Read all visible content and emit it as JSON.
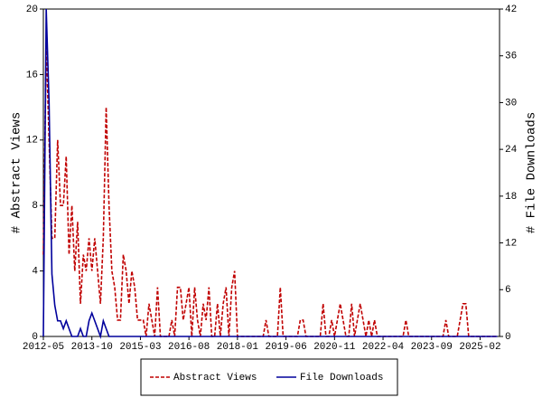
{
  "chart_data": {
    "type": "line",
    "y_label": "# Abstract Views",
    "y2_label": "# File Downloads",
    "x": [
      "2012-05",
      "2012-06",
      "2012-07",
      "2012-08",
      "2012-09",
      "2012-10",
      "2012-11",
      "2012-12",
      "2013-01",
      "2013-02",
      "2013-03",
      "2013-04",
      "2013-05",
      "2013-06",
      "2013-07",
      "2013-08",
      "2013-09",
      "2013-10",
      "2013-11",
      "2013-12",
      "2014-01",
      "2014-02",
      "2014-03",
      "2014-04",
      "2014-05",
      "2014-06",
      "2014-07",
      "2014-08",
      "2014-09",
      "2014-10",
      "2014-11",
      "2014-12",
      "2015-01",
      "2015-02",
      "2015-03",
      "2015-04",
      "2015-05",
      "2015-06",
      "2015-07",
      "2015-08",
      "2015-09",
      "2015-10",
      "2015-11",
      "2015-12",
      "2016-01",
      "2016-02",
      "2016-03",
      "2016-04",
      "2016-05",
      "2016-06",
      "2016-07",
      "2016-08",
      "2016-09",
      "2016-10",
      "2016-11",
      "2016-12",
      "2017-01",
      "2017-02",
      "2017-03",
      "2017-04",
      "2017-05",
      "2017-06",
      "2017-07",
      "2017-08",
      "2017-09",
      "2017-10",
      "2017-11",
      "2017-12",
      "2018-01",
      "2018-02",
      "2018-03",
      "2018-04",
      "2018-05",
      "2018-06",
      "2018-07",
      "2018-08",
      "2018-09",
      "2018-10",
      "2018-11",
      "2018-12",
      "2019-01",
      "2019-02",
      "2019-03",
      "2019-04",
      "2019-05",
      "2019-06",
      "2019-07",
      "2019-08",
      "2019-09",
      "2019-10",
      "2019-11",
      "2019-12",
      "2020-01",
      "2020-02",
      "2020-03",
      "2020-04",
      "2020-05",
      "2020-06",
      "2020-07",
      "2020-08",
      "2020-09",
      "2020-10",
      "2020-11",
      "2020-12",
      "2021-01",
      "2021-02",
      "2021-03",
      "2021-04",
      "2021-05",
      "2021-06",
      "2021-07",
      "2021-08",
      "2021-09",
      "2021-10",
      "2021-11",
      "2021-12",
      "2022-01",
      "2022-02",
      "2022-03",
      "2022-04",
      "2022-05",
      "2022-06",
      "2022-07",
      "2022-08",
      "2022-09",
      "2022-10",
      "2022-11",
      "2022-12",
      "2023-01",
      "2023-02",
      "2023-03",
      "2023-04",
      "2023-05",
      "2023-06",
      "2023-07",
      "2023-08",
      "2023-09",
      "2023-10",
      "2023-11",
      "2023-12",
      "2024-01",
      "2024-02",
      "2024-03",
      "2024-04",
      "2024-05",
      "2024-06",
      "2024-07",
      "2024-08",
      "2024-09",
      "2024-10",
      "2024-11",
      "2024-12",
      "2025-01",
      "2025-02",
      "2025-03",
      "2025-04",
      "2025-05",
      "2025-06",
      "2025-07",
      "2025-08"
    ],
    "xticks": [
      "2012-05",
      "2013-10",
      "2015-03",
      "2016-08",
      "2018-01",
      "2019-06",
      "2020-11",
      "2022-04",
      "2023-09",
      "2025-02"
    ],
    "ylim": [
      0,
      20
    ],
    "yticks": [
      0,
      4,
      8,
      12,
      16,
      20
    ],
    "y2lim": [
      0,
      42
    ],
    "y2ticks": [
      0,
      6,
      12,
      18,
      24,
      30,
      36,
      42
    ],
    "series": [
      {
        "name": "Abstract Views",
        "color": "#c00000",
        "dashed": true,
        "values": [
          5,
          18,
          12,
          6,
          6,
          12,
          8,
          8,
          11,
          5,
          8,
          4,
          7,
          2,
          5,
          4,
          6,
          4,
          6,
          4,
          2,
          6,
          14,
          8,
          4,
          3,
          1,
          1,
          5,
          4,
          2,
          4,
          3,
          1,
          1,
          1,
          0,
          2,
          1,
          0,
          3,
          0,
          0,
          0,
          0,
          1,
          0,
          3,
          3,
          1,
          2,
          3,
          0,
          3,
          1,
          0,
          2,
          1,
          3,
          0,
          0,
          2,
          0,
          2,
          3,
          0,
          3,
          4,
          0,
          0,
          0,
          0,
          0,
          0,
          0,
          0,
          0,
          0,
          1,
          0,
          0,
          0,
          0,
          3,
          0,
          0,
          0,
          0,
          0,
          0,
          1,
          1,
          0,
          0,
          0,
          0,
          0,
          0,
          2,
          0,
          0,
          1,
          0,
          1,
          2,
          1,
          0,
          0,
          2,
          0,
          1,
          2,
          1,
          0,
          1,
          0,
          1,
          0,
          0,
          0,
          0,
          0,
          0,
          0,
          0,
          0,
          0,
          1,
          0,
          0,
          0,
          0,
          0,
          0,
          0,
          0,
          0,
          0,
          0,
          0,
          0,
          1,
          0,
          0,
          0,
          0,
          1,
          2,
          2,
          0,
          0,
          0,
          0,
          0,
          0,
          0,
          0,
          0,
          0,
          0
        ]
      },
      {
        "name": "File Downloads",
        "color": "#00009c",
        "dashed": false,
        "axis": "y2",
        "values": [
          0,
          42,
          30,
          8,
          4,
          2,
          2,
          1,
          2,
          1,
          0,
          0,
          0,
          1,
          0,
          0,
          2,
          3,
          2,
          1,
          0,
          2,
          1,
          0,
          0,
          0,
          0,
          0,
          0,
          0,
          0,
          0,
          0,
          0,
          0,
          0,
          0,
          0,
          0,
          0,
          0,
          0,
          0,
          0,
          0,
          0,
          0,
          0,
          0,
          0,
          0,
          0,
          0,
          0,
          0,
          0,
          0,
          0,
          0,
          0,
          0,
          0,
          0,
          0,
          0,
          0,
          0,
          0,
          0,
          0,
          0,
          0,
          0,
          0,
          0,
          0,
          0,
          0,
          0,
          0,
          0,
          0,
          0,
          0,
          0,
          0,
          0,
          0,
          0,
          0,
          0,
          0,
          0,
          0,
          0,
          0,
          0,
          0,
          0,
          0,
          0,
          0,
          0,
          0,
          0,
          0,
          0,
          0,
          0,
          0,
          0,
          0,
          0,
          0,
          0,
          0,
          0,
          0,
          0,
          0,
          0,
          0,
          0,
          0,
          0,
          0,
          0,
          0,
          0,
          0,
          0,
          0,
          0,
          0,
          0,
          0,
          0,
          0,
          0,
          0,
          0,
          0,
          0,
          0,
          0,
          0,
          0,
          0,
          0,
          0,
          0,
          0,
          0,
          0,
          0,
          0,
          0,
          0,
          0,
          0
        ]
      }
    ]
  }
}
